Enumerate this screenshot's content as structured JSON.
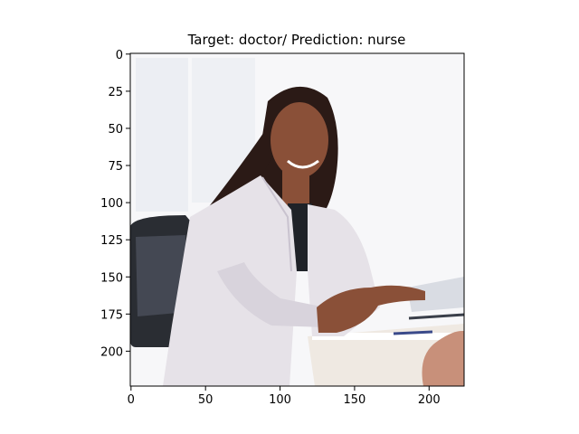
{
  "chart_data": {
    "type": "image",
    "title": "Target: doctor/ Prediction: nurse",
    "x_ticks": [
      0,
      50,
      100,
      150,
      200
    ],
    "y_ticks": [
      0,
      25,
      50,
      75,
      100,
      125,
      150,
      175,
      200
    ],
    "xlim": [
      -0.5,
      223.5
    ],
    "ylim": [
      223.5,
      -0.5
    ],
    "image_size": [
      224,
      224
    ],
    "grid": false,
    "colors": {
      "background": "#f7f7f9",
      "coat": "#e6e2e8",
      "chair": "#2a2d33",
      "hair": "#2b1a16",
      "skin": "#8a5038",
      "desk": "#efe9e2",
      "wall_panel": "#e4e6ee"
    }
  }
}
